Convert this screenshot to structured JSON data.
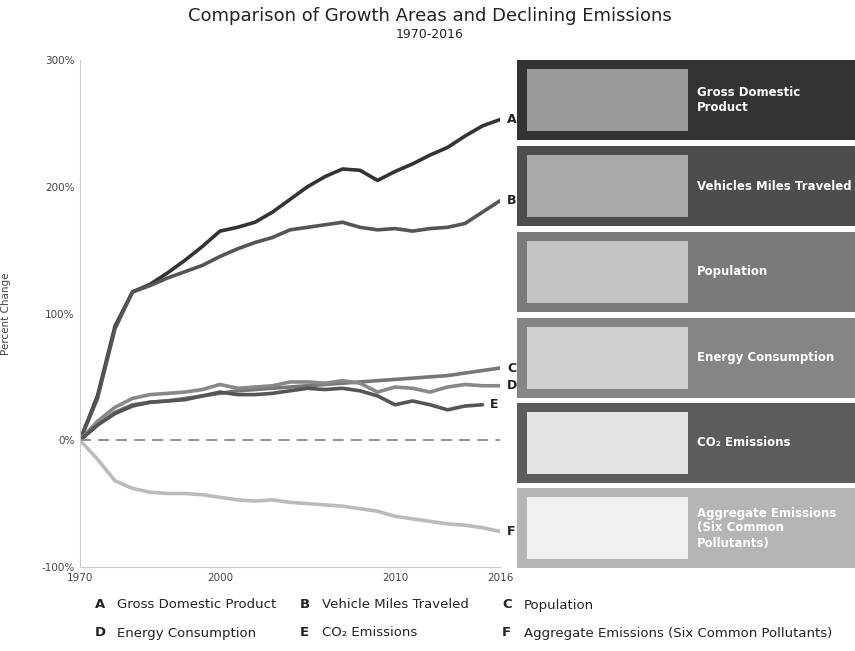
{
  "chart_data": {
    "type": "line",
    "title": "Comparison of Growth Areas and Declining Emissions",
    "subtitle": "1970-2016",
    "y_label": "Percent Change",
    "categories": [
      "1970",
      null,
      null,
      null,
      null,
      null,
      null,
      null,
      "2000",
      null,
      null,
      null,
      null,
      null,
      null,
      null,
      null,
      null,
      "2010",
      null,
      null,
      null,
      null,
      null,
      "2016"
    ],
    "ylim": [
      -100,
      300
    ],
    "yticks": [
      {
        "value": -100,
        "label": "-100%"
      },
      {
        "value": 0,
        "label": "0%"
      },
      {
        "value": 100,
        "label": "100%"
      },
      {
        "value": 200,
        "label": "200%"
      },
      {
        "value": 300,
        "label": "300%"
      }
    ],
    "baseline": 0,
    "grid": false,
    "series": [
      {
        "label": "A",
        "name": "Gross Domestic Product",
        "panel_label": "Gross Domestic Product",
        "color": "#333333",
        "values": [
          0,
          35,
          90,
          117,
          123,
          132,
          142,
          153,
          165,
          168,
          172,
          180,
          190,
          200,
          208,
          214,
          213,
          205,
          212,
          218,
          225,
          231,
          240,
          248,
          253
        ]
      },
      {
        "label": "B",
        "name": "Vehicle Miles Traveled",
        "panel_label": "Vehicles Miles Traveled",
        "color": "#555555",
        "values": [
          0,
          33,
          88,
          117,
          122,
          128,
          133,
          138,
          145,
          151,
          156,
          160,
          166,
          168,
          170,
          172,
          168,
          166,
          167,
          165,
          167,
          168,
          171,
          180,
          189
        ]
      },
      {
        "label": "C",
        "name": "Population",
        "panel_label": "Population",
        "color": "#777777",
        "values": [
          0,
          12,
          22,
          28,
          30,
          31,
          33,
          35,
          37,
          39,
          40,
          41,
          42,
          43,
          44,
          45,
          46,
          47,
          48,
          49,
          50,
          51,
          53,
          55,
          57
        ]
      },
      {
        "label": "D",
        "name": "Energy Consumption",
        "panel_label": "Energy Consumption",
        "color": "#888888",
        "values": [
          0,
          15,
          26,
          33,
          36,
          37,
          38,
          40,
          44,
          41,
          42,
          43,
          46,
          46,
          45,
          47,
          45,
          38,
          42,
          41,
          38,
          42,
          44,
          43,
          43
        ]
      },
      {
        "label": "E",
        "name": "CO₂ Emissions",
        "panel_label": "CO₂ Emissions",
        "color": "#555555",
        "values": [
          0,
          12,
          21,
          27,
          30,
          31,
          32,
          35,
          38,
          36,
          36,
          37,
          39,
          41,
          40,
          41,
          39,
          35,
          28,
          31,
          28,
          24,
          27,
          28,
          null
        ]
      },
      {
        "label": "F",
        "name": "Aggregate Emissions (Six Common Pollutants)",
        "panel_label": "Aggregate Emissions (Six Common Pollutants)",
        "color": "#bbbbbb",
        "values": [
          0,
          -15,
          -32,
          -38,
          -41,
          -42,
          -42,
          -43,
          -45,
          -47,
          -48,
          -47,
          -49,
          -50,
          -51,
          -52,
          -54,
          -56,
          -60,
          -62,
          -64,
          -66,
          -67,
          -69,
          -72
        ]
      }
    ]
  }
}
